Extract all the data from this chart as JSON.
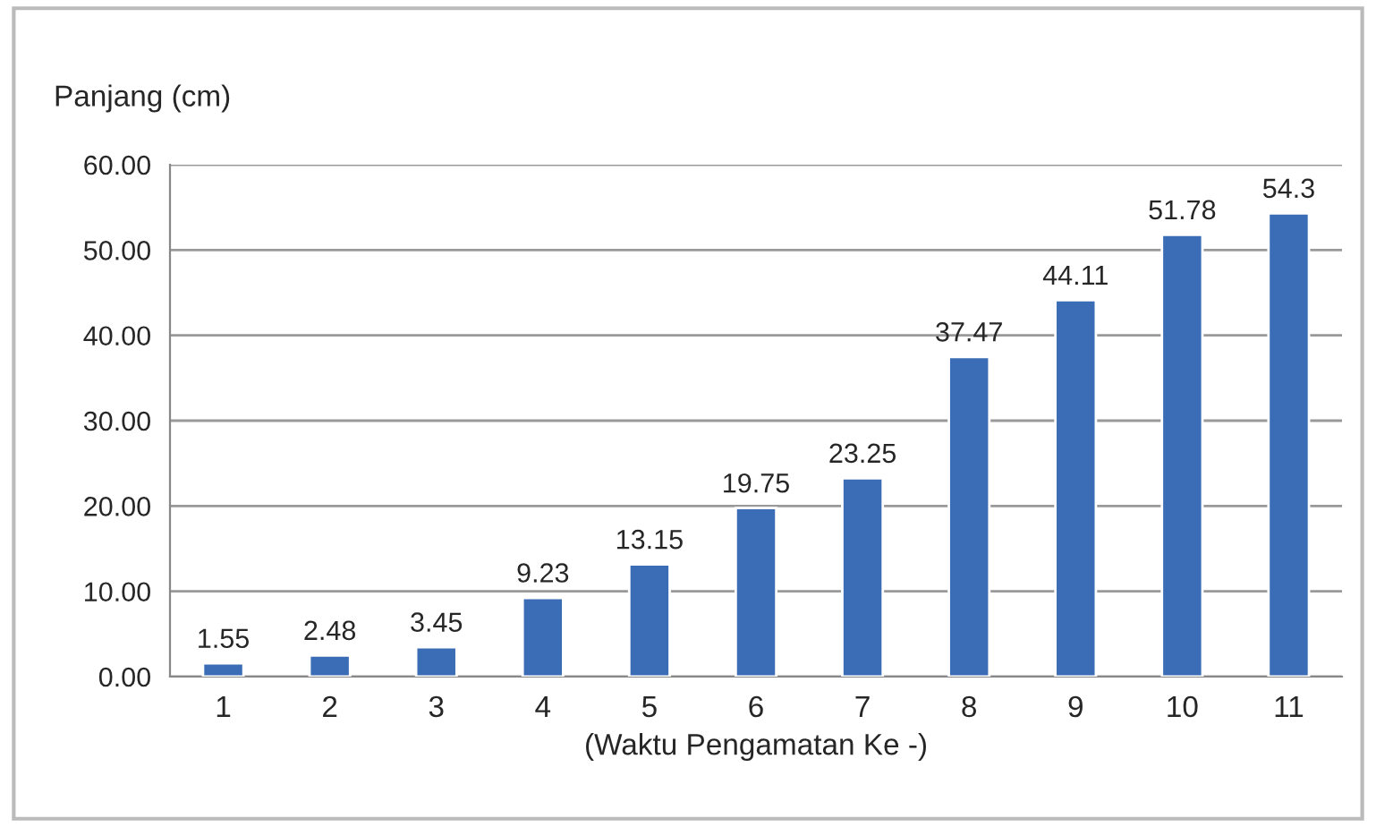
{
  "chart_data": {
    "type": "bar",
    "ylabel": "Panjang (cm)",
    "xlabel": "(Waktu Pengamatan Ke -)",
    "categories": [
      "1",
      "2",
      "3",
      "4",
      "5",
      "6",
      "7",
      "8",
      "9",
      "10",
      "11"
    ],
    "values": [
      1.55,
      2.48,
      3.45,
      9.23,
      13.15,
      19.75,
      23.25,
      37.47,
      44.11,
      51.78,
      54.3
    ],
    "color": "#3a6db5",
    "ylim": [
      0,
      60
    ],
    "yticks": [
      {
        "value": 0,
        "label": "0.00"
      },
      {
        "value": 10,
        "label": "10.00"
      },
      {
        "value": 20,
        "label": "20.00"
      },
      {
        "value": 30,
        "label": "30.00"
      },
      {
        "value": 40,
        "label": "40.00"
      },
      {
        "value": 50,
        "label": "50.00"
      },
      {
        "value": 60,
        "label": "60.00"
      }
    ],
    "grid": "y",
    "data_labels": true
  }
}
